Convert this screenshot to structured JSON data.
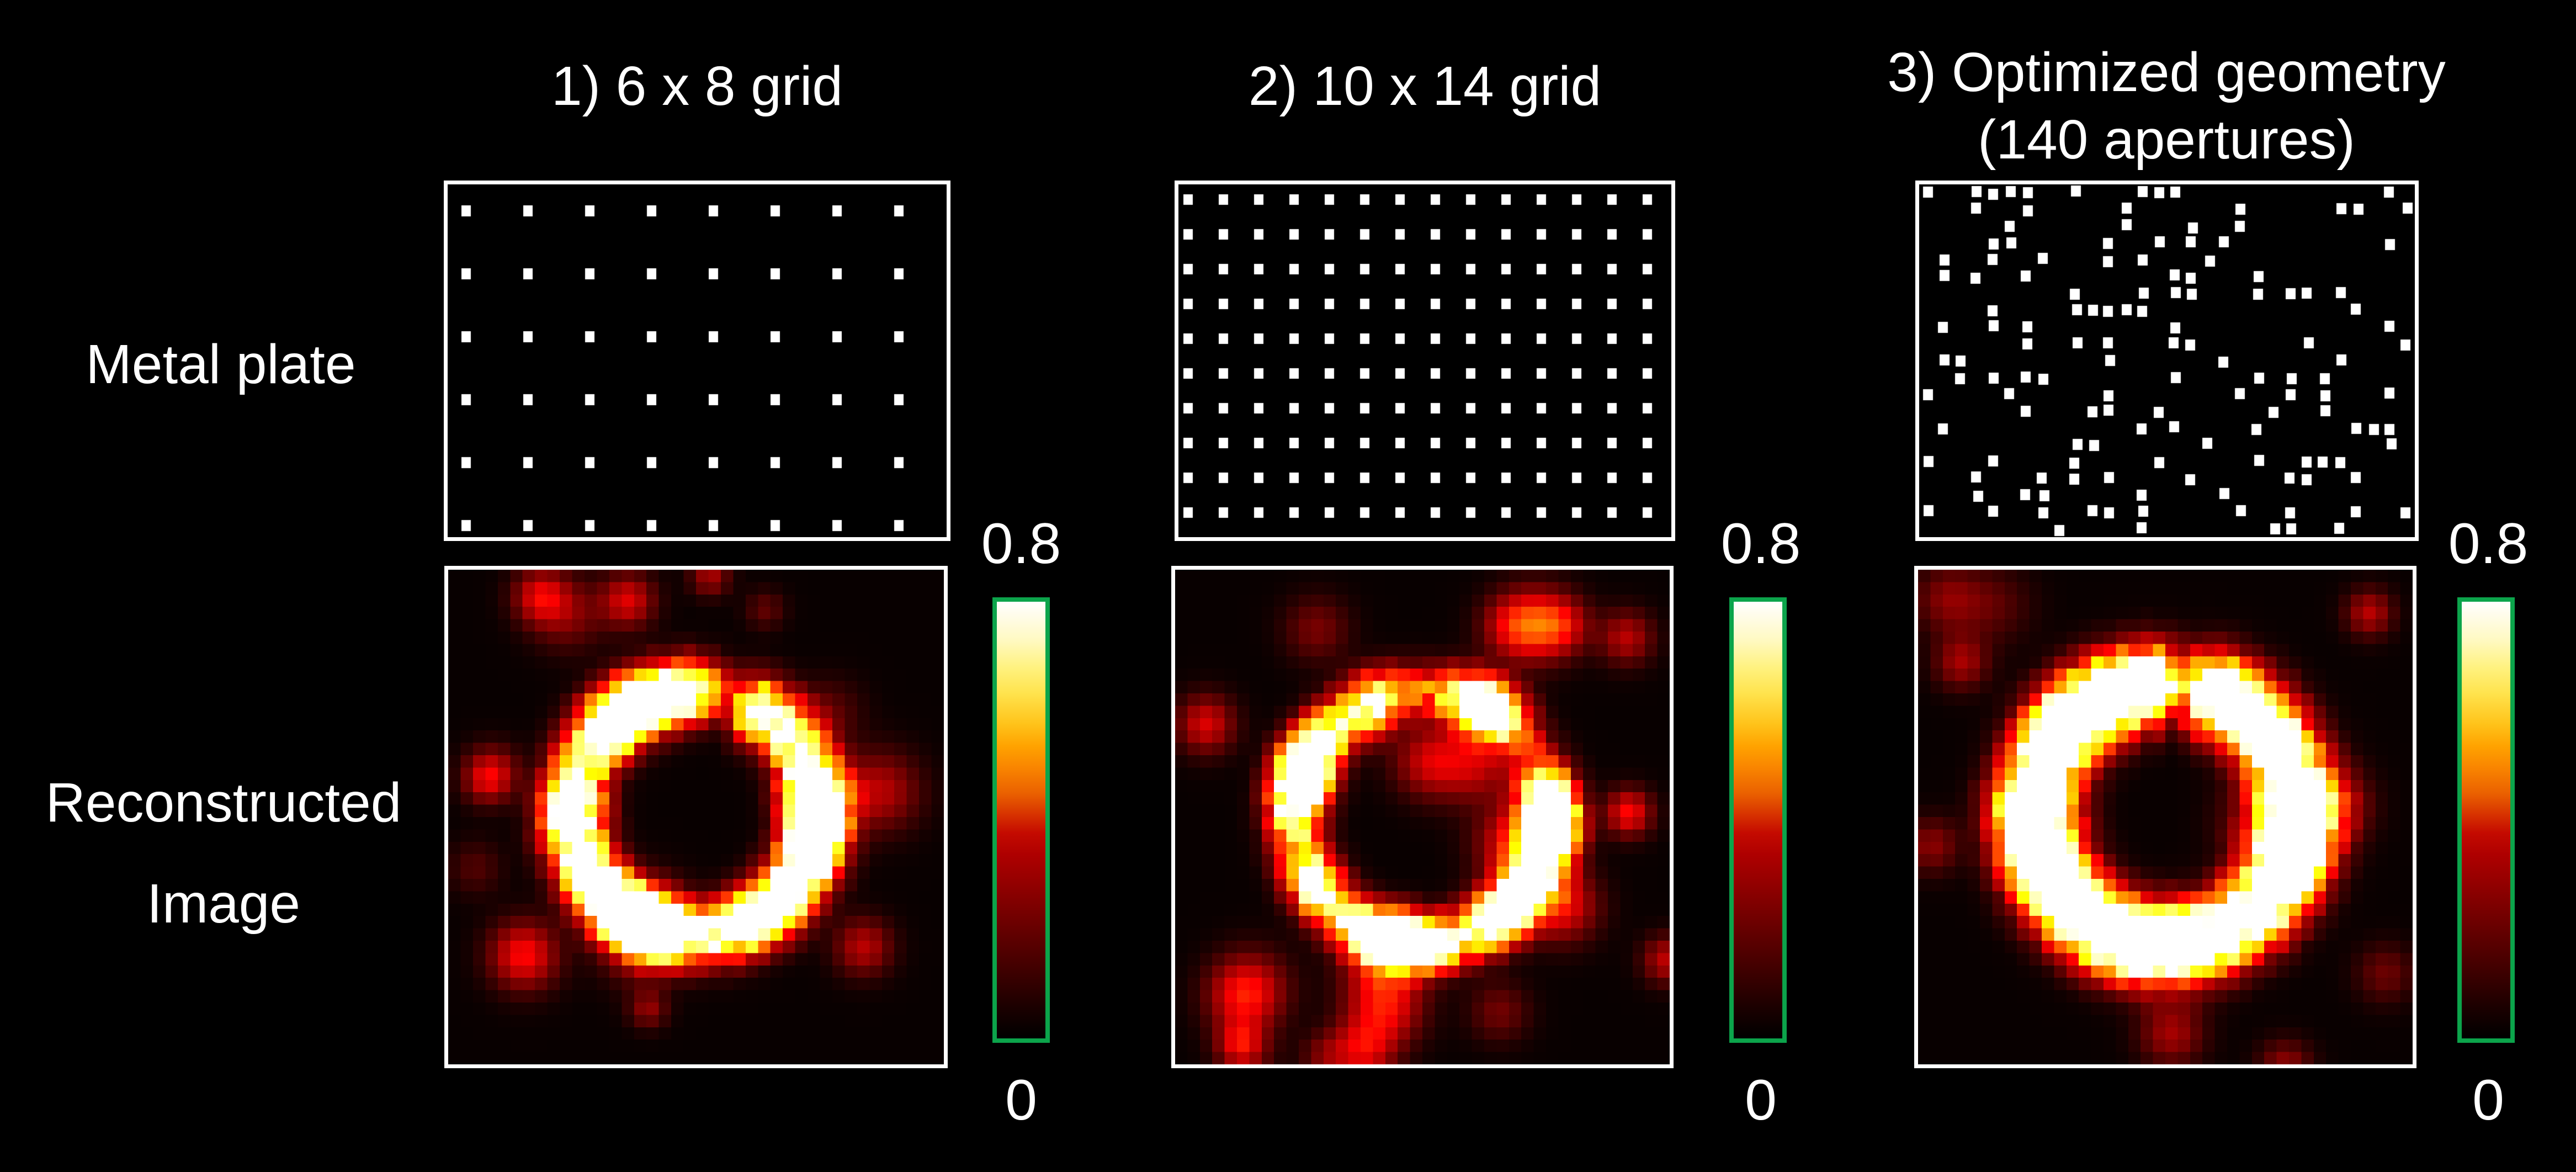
{
  "figure": {
    "background_color": "#000000",
    "text_color": "#ffffff",
    "row_labels": {
      "top": "Metal plate",
      "bottom_line1": "Reconstructed",
      "bottom_line2": "Image"
    },
    "columns": [
      {
        "title_line1": "1) 6 x 8 grid",
        "title_line2": "",
        "plate": {
          "type": "regular-grid",
          "rows": 6,
          "cols": 8
        },
        "colorbar": {
          "max_label": "0.8",
          "min_label": "0"
        }
      },
      {
        "title_line1": "2) 10 x 14 grid",
        "title_line2": "",
        "plate": {
          "type": "regular-grid",
          "rows": 10,
          "cols": 14
        },
        "colorbar": {
          "max_label": "0.8",
          "min_label": "0"
        }
      },
      {
        "title_line1": "3) Optimized geometry",
        "title_line2": "(140 apertures)",
        "plate": {
          "type": "optimized-random",
          "rows": 21,
          "cols": 30,
          "apertures": 140
        },
        "colorbar": {
          "max_label": "0.8",
          "min_label": "0"
        }
      }
    ],
    "colorbar_style": {
      "border_color": "#0ca44b",
      "colormap": "hot"
    },
    "plate_style": {
      "border_color": "#ffffff",
      "aperture_color": "#ffffff"
    },
    "image_style": {
      "border_color": "#ffffff"
    }
  }
}
